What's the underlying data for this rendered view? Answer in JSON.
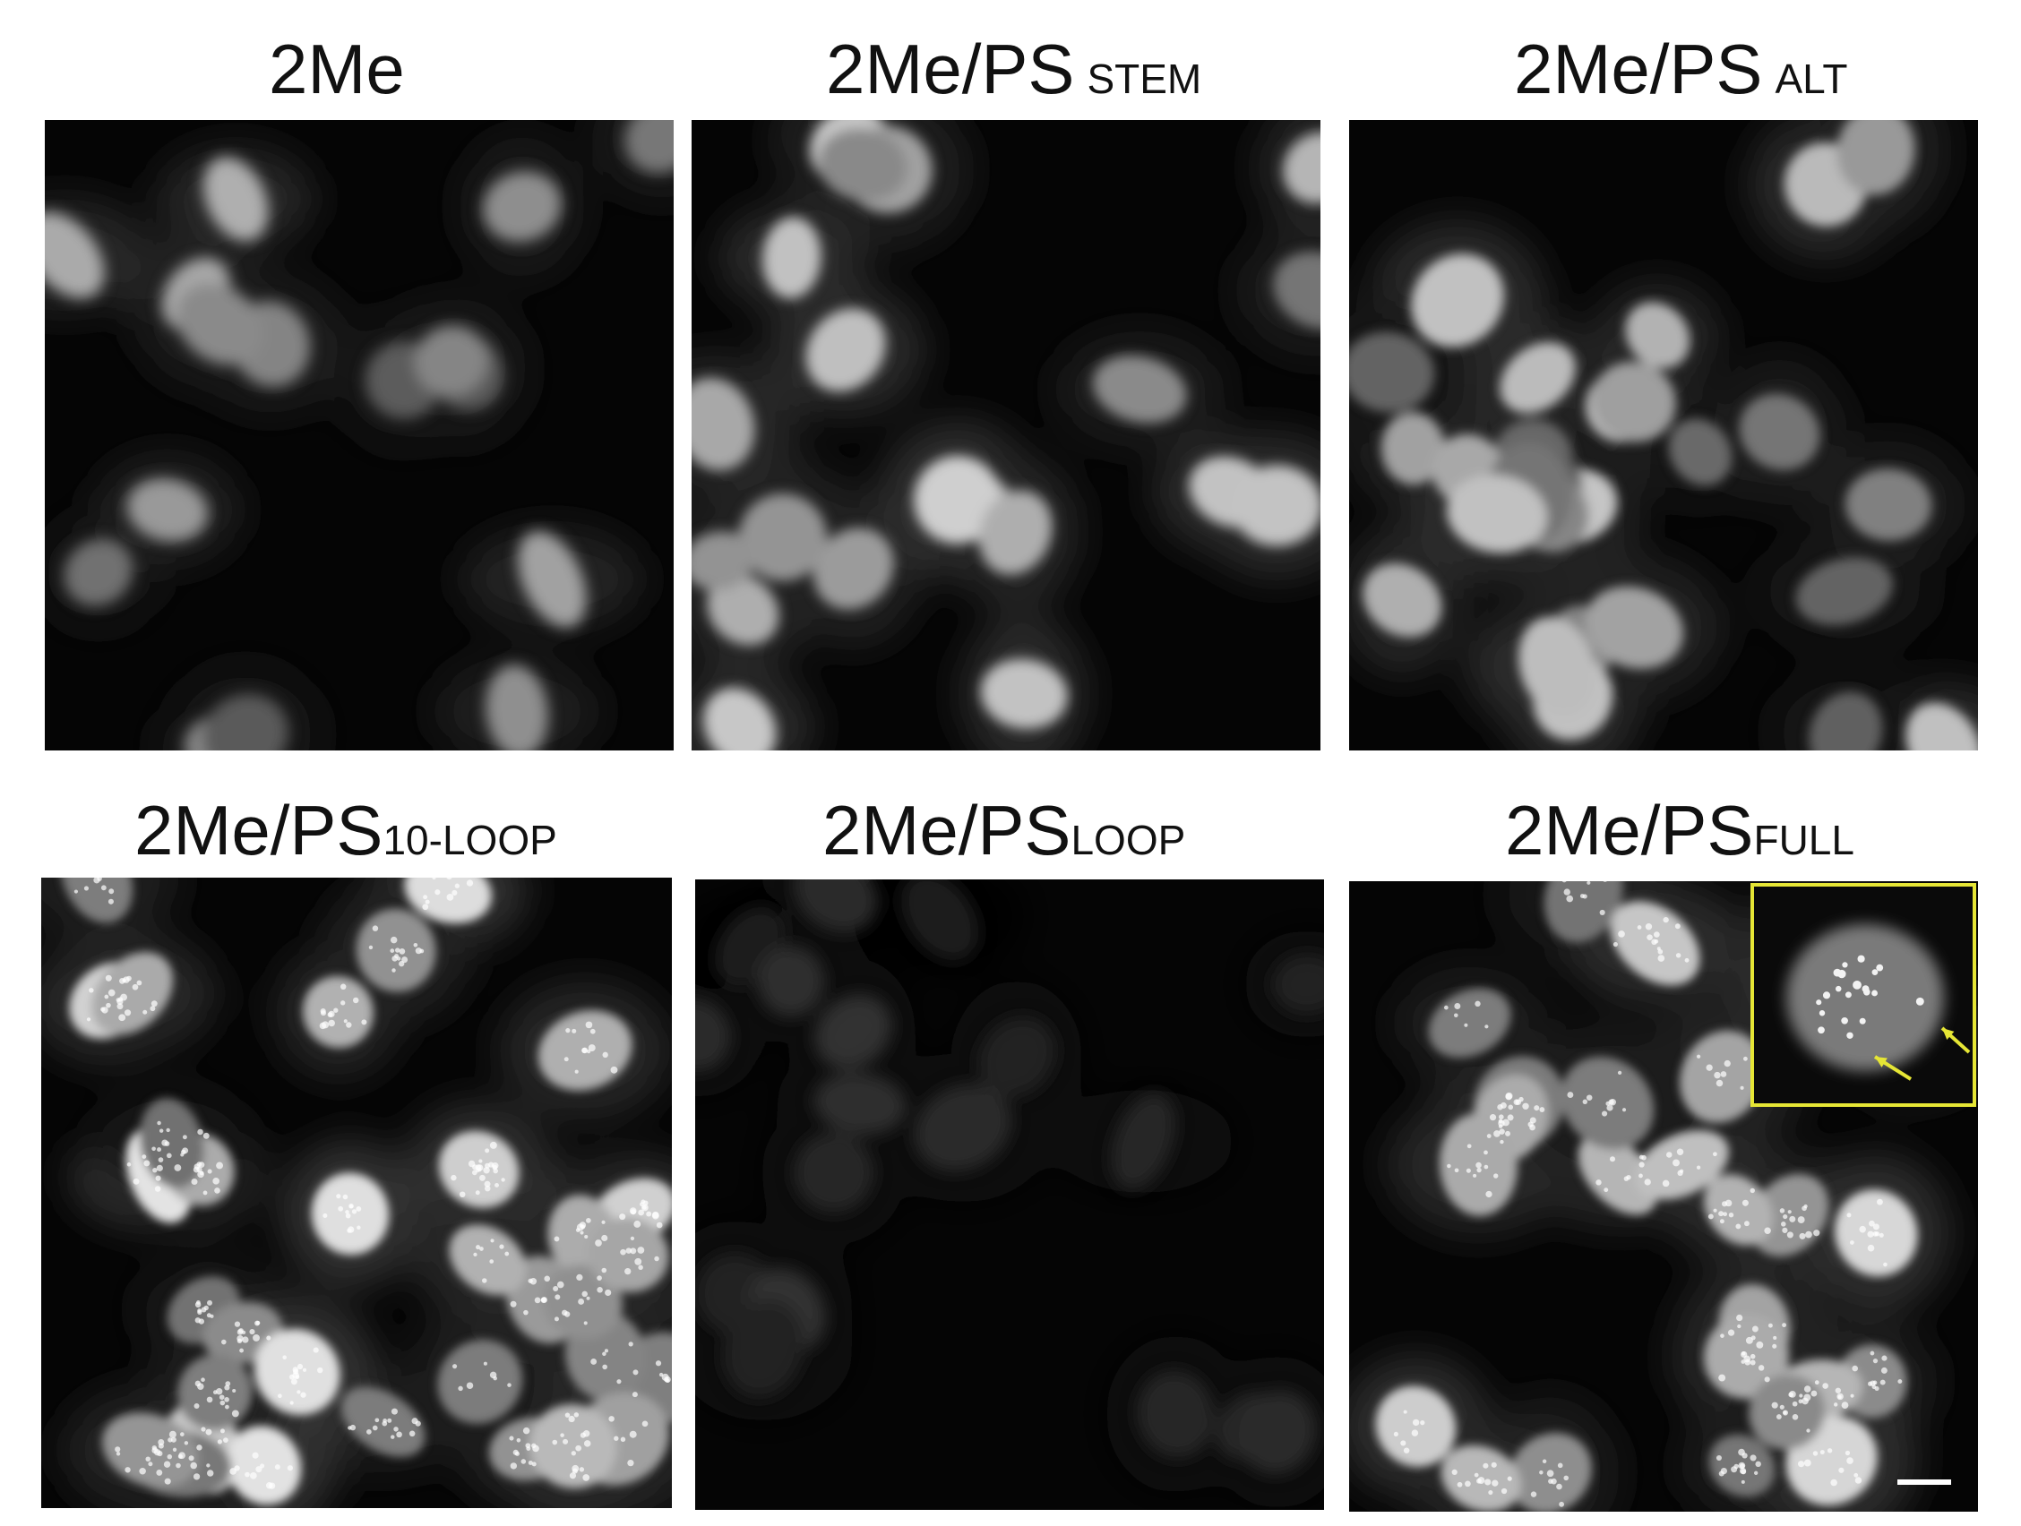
{
  "panels": [
    {
      "id": "p1",
      "label_main": "2Me",
      "label_sub": "",
      "brightness": 0.62
    },
    {
      "id": "p2",
      "label_main": "2Me/PS",
      "label_sub": "STEM",
      "brightness": 0.72
    },
    {
      "id": "p3",
      "label_main": "2Me/PS",
      "label_sub": "ALT",
      "brightness": 0.68
    },
    {
      "id": "p4",
      "label_main": "2Me/PS",
      "label_sub": "10-LOOP",
      "brightness": 0.78
    },
    {
      "id": "p5",
      "label_main": "2Me/PS",
      "label_sub": "LOOP",
      "brightness": 0.18
    },
    {
      "id": "p6",
      "label_main": "2Me/PS",
      "label_sub": "FULL",
      "brightness": 0.74
    }
  ],
  "inset": {
    "border_color": "#e6e635",
    "arrow_color": "#e6e635"
  },
  "colors": {
    "background": "#ffffff",
    "panel": "#000000",
    "text": "#111111"
  }
}
